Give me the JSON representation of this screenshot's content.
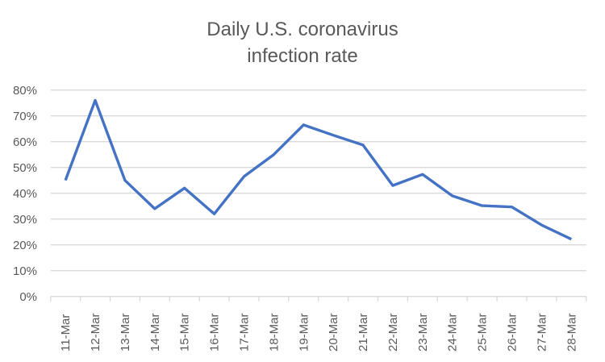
{
  "chart_data": {
    "type": "line",
    "title_lines": [
      "Daily U.S. coronavirus",
      "infection rate"
    ],
    "xlabel": "",
    "ylabel": "",
    "categories": [
      "11-Mar",
      "12-Mar",
      "13-Mar",
      "14-Mar",
      "15-Mar",
      "16-Mar",
      "17-Mar",
      "18-Mar",
      "19-Mar",
      "20-Mar",
      "21-Mar",
      "22-Mar",
      "23-Mar",
      "24-Mar",
      "25-Mar",
      "26-Mar",
      "27-Mar",
      "28-Mar"
    ],
    "series": [
      {
        "name": "Daily infection rate",
        "color": "#4472C4",
        "values": [
          0.45,
          0.76,
          0.45,
          0.34,
          0.42,
          0.32,
          0.465,
          0.55,
          0.665,
          0.625,
          0.587,
          0.43,
          0.473,
          0.39,
          0.352,
          0.347,
          0.277,
          0.222
        ]
      }
    ],
    "ylim": [
      0,
      0.8
    ],
    "yticks": [
      0,
      0.1,
      0.2,
      0.3,
      0.4,
      0.5,
      0.6,
      0.7,
      0.8
    ],
    "ytick_labels": [
      "0%",
      "10%",
      "20%",
      "30%",
      "40%",
      "50%",
      "60%",
      "70%",
      "80%"
    ],
    "grid": true,
    "legend": "none",
    "colors": {
      "line": "#4472C4",
      "grid": "#D9D9D9",
      "text": "#595959"
    }
  }
}
